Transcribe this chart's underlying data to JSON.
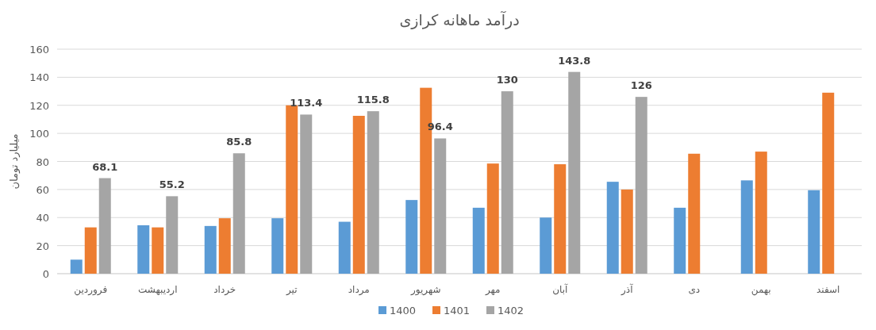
{
  "chart_data": {
    "type": "bar",
    "title": "درآمد ماهانه کرازی",
    "ylabel": "میلیارد تومان",
    "categories": [
      "فروردین",
      "اردیبهشت",
      "خرداد",
      "تیر",
      "مرداد",
      "شهریور",
      "مهر",
      "آبان",
      "آذر",
      "دی",
      "بهمن",
      "اسفند"
    ],
    "series": [
      {
        "name": "1400",
        "color": "#5b9bd5",
        "values": [
          10,
          34.5,
          34,
          39.5,
          37,
          52.5,
          47,
          40,
          65.5,
          47,
          66.5,
          59.5
        ]
      },
      {
        "name": "1401",
        "color": "#ed7d31",
        "values": [
          33,
          33,
          39.5,
          120,
          112.5,
          132.5,
          78.5,
          78,
          60,
          85.5,
          87,
          129
        ]
      },
      {
        "name": "1402",
        "color": "#a5a5a5",
        "values": [
          68.1,
          55.2,
          85.8,
          113.4,
          115.8,
          96.4,
          130,
          143.8,
          126,
          null,
          null,
          null
        ],
        "value_labels": [
          "68.1",
          "55.2",
          "85.8",
          "113.4",
          "115.8",
          "96.4",
          "130",
          "143.8",
          "126",
          null,
          null,
          null
        ]
      }
    ],
    "ylim": [
      0,
      160
    ],
    "yticks": [
      0,
      20,
      40,
      60,
      80,
      100,
      120,
      140,
      160
    ],
    "grid": "y",
    "legend": "bottom"
  }
}
